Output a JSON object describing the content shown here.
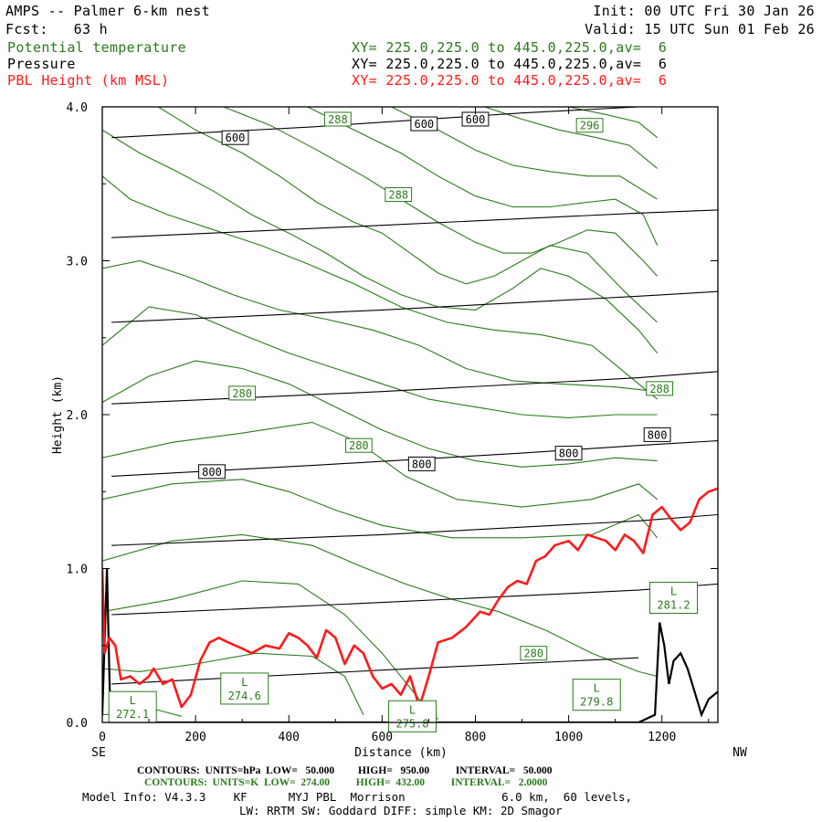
{
  "header": {
    "title": "AMPS -- Palmer 6-km nest",
    "forecast": "Fcst:   63 h",
    "init": "Init: 00 UTC Fri 30 Jan 26",
    "valid": "Valid: 15 UTC Sun 01 Feb 26",
    "fields": [
      {
        "name": "Potential temperature",
        "xy": "XY= 225.0,225.0 to 445.0,225.0,av=  6",
        "color": "#2a7a1a"
      },
      {
        "name": "Pressure",
        "xy": "XY= 225.0,225.0 to 445.0,225.0,av=  6",
        "color": "#000000"
      },
      {
        "name": "PBL Height (km MSL)",
        "xy": "XY= 225.0,225.0 to 445.0,225.0,av=  6",
        "color": "#ff1a1a"
      }
    ]
  },
  "chart_data": {
    "type": "line",
    "xlabel": "Distance (km)",
    "ylabel": "Height (km)",
    "xlim": [
      0,
      1320
    ],
    "ylim": [
      0,
      4.0
    ],
    "x_ticks": [
      "0",
      "200",
      "400",
      "600",
      "800",
      "1000",
      "1200"
    ],
    "y_ticks": [
      "0.0",
      "1.0",
      "2.0",
      "3.0",
      "4.0"
    ],
    "x_end_labels": {
      "left": "SE",
      "right": "NW"
    },
    "colors": {
      "pressure": "#000000",
      "theta": "#2a7a1a",
      "pbl": "#ff1a1a"
    },
    "pressure_contours": [
      {
        "level": "800",
        "points": [
          [
            20,
            1.6
          ],
          [
            450,
            1.67
          ],
          [
            900,
            1.75
          ],
          [
            1150,
            1.8
          ],
          [
            1320,
            1.83
          ]
        ]
      },
      {
        "level": "600",
        "points": [
          [
            20,
            3.8
          ],
          [
            450,
            3.87
          ],
          [
            900,
            3.96
          ],
          [
            1150,
            4.0
          ]
        ]
      }
    ],
    "pressure_lines_unlabeled": [
      [
        [
          20,
          0.25
        ],
        [
          600,
          0.34
        ],
        [
          1150,
          0.42
        ]
      ],
      [
        [
          20,
          0.7
        ],
        [
          600,
          0.78
        ],
        [
          1150,
          0.86
        ],
        [
          1320,
          0.9
        ]
      ],
      [
        [
          20,
          1.15
        ],
        [
          600,
          1.22
        ],
        [
          1150,
          1.31
        ],
        [
          1320,
          1.35
        ]
      ],
      [
        [
          20,
          2.07
        ],
        [
          600,
          2.15
        ],
        [
          1150,
          2.24
        ],
        [
          1320,
          2.28
        ]
      ],
      [
        [
          20,
          2.6
        ],
        [
          600,
          2.68
        ],
        [
          1150,
          2.77
        ],
        [
          1320,
          2.8
        ]
      ],
      [
        [
          20,
          3.15
        ],
        [
          600,
          3.23
        ],
        [
          1150,
          3.31
        ],
        [
          1320,
          3.33
        ]
      ]
    ],
    "pressure_labels": [
      {
        "text": "600",
        "x": 285,
        "y": 3.8
      },
      {
        "text": "600",
        "x": 690,
        "y": 3.89
      },
      {
        "text": "600",
        "x": 800,
        "y": 3.92
      },
      {
        "text": "800",
        "x": 235,
        "y": 1.63
      },
      {
        "text": "800",
        "x": 685,
        "y": 1.68
      },
      {
        "text": "800",
        "x": 1000,
        "y": 1.75
      },
      {
        "text": "800",
        "x": 1190,
        "y": 1.87
      }
    ],
    "theta_labels": [
      {
        "text": "288",
        "x": 505,
        "y": 3.92
      },
      {
        "text": "296",
        "x": 1045,
        "y": 3.88
      },
      {
        "text": "288",
        "x": 635,
        "y": 3.43
      },
      {
        "text": "280",
        "x": 300,
        "y": 2.14
      },
      {
        "text": "288",
        "x": 1195,
        "y": 2.17
      },
      {
        "text": "280",
        "x": 550,
        "y": 1.8
      },
      {
        "text": "280",
        "x": 925,
        "y": 0.45
      }
    ],
    "theta_lows": [
      {
        "text": "272.1",
        "x": 65,
        "y": 0.1
      },
      {
        "text": "274.6",
        "x": 305,
        "y": 0.22
      },
      {
        "text": "275.8",
        "x": 665,
        "y": 0.04
      },
      {
        "text": "279.8",
        "x": 1060,
        "y": 0.18
      },
      {
        "text": "281.2",
        "x": 1225,
        "y": 0.81
      }
    ],
    "theta_lines": [
      [
        [
          0,
          0.05
        ],
        [
          60,
          0.06
        ],
        [
          120,
          0.08
        ],
        [
          170,
          0.04
        ]
      ],
      [
        [
          0,
          0.35
        ],
        [
          80,
          0.33
        ],
        [
          200,
          0.38
        ],
        [
          330,
          0.45
        ],
        [
          450,
          0.43
        ],
        [
          520,
          0.3
        ],
        [
          560,
          0.05
        ]
      ],
      [
        [
          0,
          0.72
        ],
        [
          150,
          0.8
        ],
        [
          300,
          0.92
        ],
        [
          420,
          0.9
        ],
        [
          520,
          0.7
        ],
        [
          600,
          0.45
        ],
        [
          680,
          0.15
        ],
        [
          720,
          0.02
        ]
      ],
      [
        [
          0,
          1.05
        ],
        [
          150,
          1.18
        ],
        [
          300,
          1.22
        ],
        [
          450,
          1.15
        ],
        [
          550,
          1.02
        ],
        [
          650,
          0.9
        ],
        [
          750,
          0.8
        ],
        [
          850,
          0.72
        ],
        [
          950,
          0.6
        ],
        [
          1050,
          0.45
        ],
        [
          1150,
          0.33
        ],
        [
          1190,
          0.3
        ]
      ],
      [
        [
          0,
          1.45
        ],
        [
          150,
          1.55
        ],
        [
          300,
          1.58
        ],
        [
          400,
          1.5
        ],
        [
          500,
          1.38
        ],
        [
          600,
          1.28
        ],
        [
          750,
          1.2
        ],
        [
          900,
          1.2
        ],
        [
          1050,
          1.22
        ],
        [
          1150,
          1.35
        ],
        [
          1190,
          1.2
        ]
      ],
      [
        [
          0,
          1.72
        ],
        [
          150,
          1.82
        ],
        [
          300,
          1.88
        ],
        [
          450,
          1.95
        ],
        [
          550,
          1.82
        ],
        [
          650,
          1.6
        ],
        [
          760,
          1.45
        ],
        [
          900,
          1.4
        ],
        [
          1050,
          1.45
        ],
        [
          1150,
          1.55
        ],
        [
          1190,
          1.45
        ]
      ],
      [
        [
          0,
          2.08
        ],
        [
          100,
          2.25
        ],
        [
          200,
          2.35
        ],
        [
          300,
          2.3
        ],
        [
          400,
          2.2
        ],
        [
          500,
          2.05
        ],
        [
          600,
          1.9
        ],
        [
          700,
          1.78
        ],
        [
          800,
          1.7
        ],
        [
          900,
          1.66
        ],
        [
          1000,
          1.68
        ],
        [
          1100,
          1.72
        ],
        [
          1190,
          1.7
        ]
      ],
      [
        [
          0,
          2.45
        ],
        [
          100,
          2.7
        ],
        [
          200,
          2.65
        ],
        [
          300,
          2.52
        ],
        [
          400,
          2.4
        ],
        [
          500,
          2.3
        ],
        [
          600,
          2.2
        ],
        [
          700,
          2.1
        ],
        [
          800,
          2.05
        ],
        [
          900,
          2.0
        ],
        [
          1000,
          1.98
        ],
        [
          1100,
          2.0
        ],
        [
          1190,
          2.0
        ]
      ],
      [
        [
          0,
          2.95
        ],
        [
          80,
          3.0
        ],
        [
          180,
          2.9
        ],
        [
          280,
          2.78
        ],
        [
          380,
          2.68
        ],
        [
          480,
          2.62
        ],
        [
          580,
          2.55
        ],
        [
          680,
          2.45
        ],
        [
          780,
          2.3
        ],
        [
          880,
          2.22
        ],
        [
          980,
          2.2
        ],
        [
          1100,
          2.18
        ],
        [
          1190,
          2.15
        ]
      ],
      [
        [
          0,
          3.55
        ],
        [
          60,
          3.4
        ],
        [
          140,
          3.3
        ],
        [
          240,
          3.2
        ],
        [
          340,
          3.1
        ],
        [
          440,
          2.98
        ],
        [
          540,
          2.85
        ],
        [
          640,
          2.7
        ],
        [
          740,
          2.6
        ],
        [
          840,
          2.55
        ],
        [
          940,
          2.52
        ],
        [
          1050,
          2.45
        ],
        [
          1150,
          2.2
        ],
        [
          1190,
          2.1
        ]
      ],
      [
        [
          0,
          3.85
        ],
        [
          80,
          3.7
        ],
        [
          160,
          3.58
        ],
        [
          240,
          3.45
        ],
        [
          320,
          3.3
        ],
        [
          400,
          3.18
        ],
        [
          480,
          3.05
        ],
        [
          560,
          2.9
        ],
        [
          640,
          2.78
        ],
        [
          720,
          2.7
        ],
        [
          800,
          2.68
        ],
        [
          880,
          2.82
        ],
        [
          940,
          2.95
        ],
        [
          1000,
          2.9
        ],
        [
          1080,
          2.75
        ],
        [
          1150,
          2.55
        ],
        [
          1190,
          2.4
        ]
      ],
      [
        [
          120,
          4.0
        ],
        [
          200,
          3.85
        ],
        [
          300,
          3.7
        ],
        [
          380,
          3.55
        ],
        [
          460,
          3.38
        ],
        [
          540,
          3.25
        ],
        [
          600,
          3.18
        ],
        [
          660,
          3.05
        ],
        [
          720,
          2.92
        ],
        [
          780,
          2.85
        ],
        [
          840,
          2.9
        ],
        [
          900,
          3.0
        ],
        [
          960,
          3.1
        ],
        [
          1040,
          3.05
        ],
        [
          1120,
          2.8
        ],
        [
          1190,
          2.6
        ]
      ],
      [
        [
          260,
          4.0
        ],
        [
          360,
          3.88
        ],
        [
          460,
          3.72
        ],
        [
          560,
          3.55
        ],
        [
          640,
          3.4
        ],
        [
          720,
          3.25
        ],
        [
          800,
          3.12
        ],
        [
          860,
          3.05
        ],
        [
          920,
          3.05
        ],
        [
          980,
          3.12
        ],
        [
          1040,
          3.2
        ],
        [
          1100,
          3.18
        ],
        [
          1160,
          3.0
        ],
        [
          1190,
          2.9
        ]
      ],
      [
        [
          440,
          4.0
        ],
        [
          540,
          3.85
        ],
        [
          640,
          3.7
        ],
        [
          720,
          3.55
        ],
        [
          800,
          3.42
        ],
        [
          880,
          3.35
        ],
        [
          960,
          3.35
        ],
        [
          1040,
          3.38
        ],
        [
          1100,
          3.4
        ],
        [
          1160,
          3.3
        ],
        [
          1190,
          3.1
        ]
      ],
      [
        [
          620,
          4.0
        ],
        [
          720,
          3.85
        ],
        [
          800,
          3.72
        ],
        [
          880,
          3.62
        ],
        [
          960,
          3.58
        ],
        [
          1040,
          3.55
        ],
        [
          1110,
          3.55
        ],
        [
          1190,
          3.4
        ]
      ],
      [
        [
          820,
          4.0
        ],
        [
          900,
          3.92
        ],
        [
          980,
          3.85
        ],
        [
          1060,
          3.8
        ],
        [
          1130,
          3.75
        ],
        [
          1190,
          3.6
        ]
      ],
      [
        [
          1000,
          4.0
        ],
        [
          1080,
          3.95
        ],
        [
          1150,
          3.9
        ],
        [
          1190,
          3.8
        ]
      ]
    ],
    "terrain_line": [
      [
        0,
        0.05
      ],
      [
        10,
        1.0
      ],
      [
        16,
        0.2
      ],
      [
        22,
        0.0
      ],
      [
        1150,
        0.0
      ],
      [
        1185,
        0.05
      ],
      [
        1195,
        0.65
      ],
      [
        1205,
        0.5
      ],
      [
        1215,
        0.25
      ],
      [
        1225,
        0.4
      ],
      [
        1240,
        0.45
      ],
      [
        1255,
        0.35
      ],
      [
        1270,
        0.2
      ],
      [
        1285,
        0.05
      ],
      [
        1300,
        0.15
      ],
      [
        1320,
        0.2
      ]
    ],
    "pbl_height": [
      [
        0,
        1.0
      ],
      [
        5,
        0.45
      ],
      [
        15,
        0.55
      ],
      [
        28,
        0.5
      ],
      [
        40,
        0.28
      ],
      [
        60,
        0.3
      ],
      [
        80,
        0.25
      ],
      [
        100,
        0.3
      ],
      [
        110,
        0.35
      ],
      [
        130,
        0.25
      ],
      [
        150,
        0.28
      ],
      [
        170,
        0.1
      ],
      [
        190,
        0.18
      ],
      [
        210,
        0.4
      ],
      [
        230,
        0.52
      ],
      [
        250,
        0.55
      ],
      [
        270,
        0.52
      ],
      [
        300,
        0.48
      ],
      [
        320,
        0.45
      ],
      [
        350,
        0.5
      ],
      [
        380,
        0.48
      ],
      [
        400,
        0.58
      ],
      [
        420,
        0.55
      ],
      [
        440,
        0.5
      ],
      [
        460,
        0.42
      ],
      [
        480,
        0.6
      ],
      [
        500,
        0.55
      ],
      [
        520,
        0.38
      ],
      [
        540,
        0.5
      ],
      [
        560,
        0.45
      ],
      [
        580,
        0.3
      ],
      [
        600,
        0.22
      ],
      [
        620,
        0.25
      ],
      [
        640,
        0.18
      ],
      [
        660,
        0.3
      ],
      [
        680,
        0.1
      ],
      [
        700,
        0.3
      ],
      [
        720,
        0.52
      ],
      [
        750,
        0.55
      ],
      [
        780,
        0.62
      ],
      [
        810,
        0.72
      ],
      [
        830,
        0.7
      ],
      [
        850,
        0.8
      ],
      [
        870,
        0.88
      ],
      [
        890,
        0.92
      ],
      [
        910,
        0.9
      ],
      [
        930,
        1.05
      ],
      [
        950,
        1.08
      ],
      [
        970,
        1.15
      ],
      [
        1000,
        1.18
      ],
      [
        1020,
        1.12
      ],
      [
        1040,
        1.22
      ],
      [
        1060,
        1.2
      ],
      [
        1080,
        1.18
      ],
      [
        1100,
        1.12
      ],
      [
        1120,
        1.22
      ],
      [
        1140,
        1.18
      ],
      [
        1160,
        1.1
      ],
      [
        1180,
        1.35
      ],
      [
        1200,
        1.4
      ],
      [
        1220,
        1.32
      ],
      [
        1240,
        1.25
      ],
      [
        1260,
        1.3
      ],
      [
        1280,
        1.45
      ],
      [
        1300,
        1.5
      ],
      [
        1320,
        1.52
      ]
    ]
  },
  "footer": {
    "pressure_line": "CONTOURS:  UNITS=hPa  LOW=   50.000         HIGH=   950.00          INTERVAL=   50.000",
    "theta_line": "CONTOURS:  UNITS=K  LOW=  274.00          HIGH=  432.00          INTERVAL=   2.0000",
    "model_info": "Model Info: V4.3.3    KF      MYJ PBL  Morrison              6.0 km,  60 levels,",
    "physics": "LW: RRTM SW: Goddard DIFF: simple KM: 2D Smagor"
  }
}
